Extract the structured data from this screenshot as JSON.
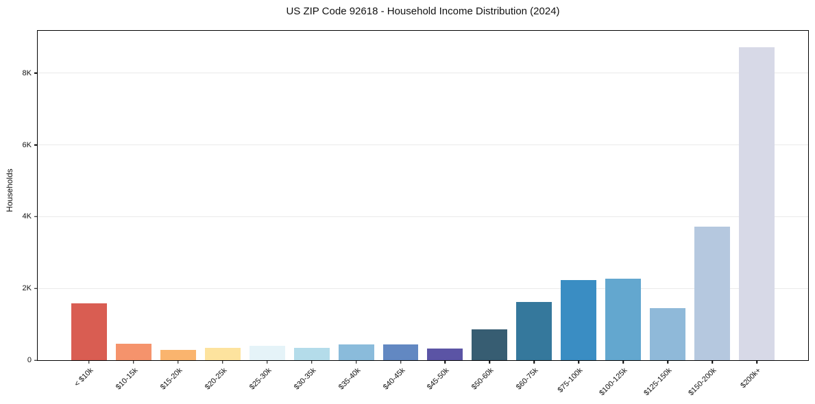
{
  "chart_data": {
    "type": "bar",
    "title": "US ZIP Code 92618 - Household Income Distribution (2024)",
    "xlabel": "",
    "ylabel": "Households",
    "categories": [
      "< $10k",
      "$10-15k",
      "$15-20k",
      "$20-25k",
      "$25-30k",
      "$30-35k",
      "$35-40k",
      "$40-45k",
      "$45-50k",
      "$50-60k",
      "$60-75k",
      "$75-100k",
      "$100-125k",
      "$125-150k",
      "$150-200k",
      "$200k+"
    ],
    "values": [
      1580,
      465,
      290,
      340,
      410,
      345,
      445,
      440,
      320,
      850,
      1625,
      2225,
      2275,
      1450,
      3725,
      8720
    ],
    "bar_colors": [
      "#d95d52",
      "#f5936c",
      "#fab46e",
      "#fde39e",
      "#e5f3f8",
      "#b4dcea",
      "#8abbdb",
      "#6288c2",
      "#5b54a5",
      "#375d72",
      "#35789c",
      "#3a8dc3",
      "#63a7cf",
      "#8fb9d9",
      "#b5c8df",
      "#d7d9e7"
    ],
    "yticks": [
      {
        "value": 0,
        "label": "0"
      },
      {
        "value": 2000,
        "label": "2K"
      },
      {
        "value": 4000,
        "label": "4K"
      },
      {
        "value": 6000,
        "label": "6K"
      },
      {
        "value": 8000,
        "label": "8K"
      }
    ],
    "ylim": [
      0,
      9180
    ],
    "grid": "horizontal",
    "grid_color": "#eaeaea",
    "legend": "none",
    "background": "#ffffff",
    "spine_color": "#000000",
    "x_tick_rotation_deg": 45
  }
}
